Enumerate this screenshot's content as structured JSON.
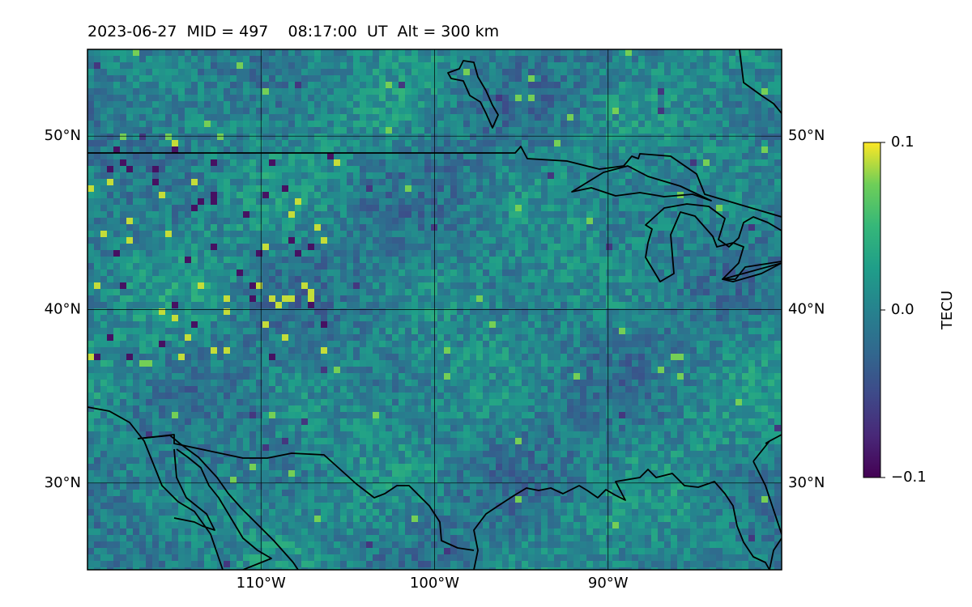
{
  "title": "2023-06-27  MID = 497    08:17:00  UT  Alt = 300 km",
  "map": {
    "lon_range": [
      -120,
      -80
    ],
    "lat_range": [
      25,
      55
    ],
    "lat_ticks": [
      {
        "value": 50,
        "label": "50°N"
      },
      {
        "value": 40,
        "label": "40°N"
      },
      {
        "value": 30,
        "label": "30°N"
      }
    ],
    "lon_ticks": [
      {
        "value": -110,
        "label": "110°W"
      },
      {
        "value": -100,
        "label": "100°W"
      },
      {
        "value": -90,
        "label": "90°W"
      }
    ],
    "grid": true,
    "coastlines": true,
    "colormap": "viridis"
  },
  "colorbar": {
    "label": "TECU",
    "range": [
      -0.1,
      0.1
    ],
    "ticks": [
      {
        "value": 0.1,
        "label": "0.1"
      },
      {
        "value": 0.0,
        "label": "0.0"
      },
      {
        "value": -0.1,
        "label": "−0.1"
      }
    ]
  }
}
